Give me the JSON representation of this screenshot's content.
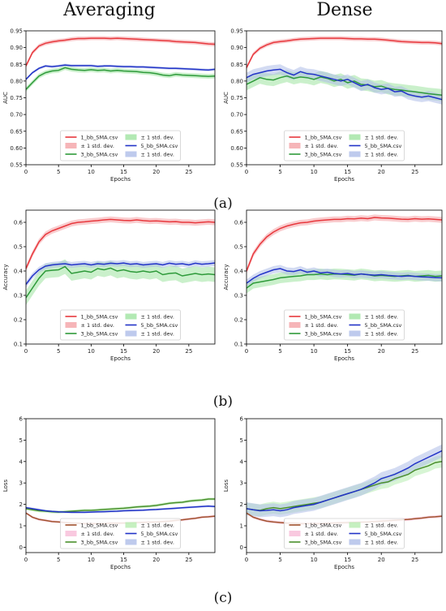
{
  "column_titles": [
    "Averaging",
    "Dense"
  ],
  "panel_labels": [
    "(a)",
    "(b)",
    "(c)"
  ],
  "chart_data": [
    {
      "type": "line",
      "panel": "a",
      "column": "Averaging",
      "xlabel": "Epochs",
      "ylabel": "AUC",
      "xlim": [
        0,
        29
      ],
      "ylim": [
        0.55,
        0.95
      ],
      "xticks": [
        0,
        5,
        10,
        15,
        20,
        25
      ],
      "yticks": [
        0.55,
        0.6,
        0.65,
        0.7,
        0.75,
        0.8,
        0.85,
        0.9,
        0.95
      ],
      "legend_position": "bottom-center",
      "legend": [
        "1_bb_SMA.csv",
        "± 1 std. dev.",
        "3_bb_SMA.csv",
        "± 1 std. dev.",
        "5_bb_SMA.csv",
        "± 1 std. dev."
      ],
      "x": [
        0,
        1,
        2,
        3,
        4,
        5,
        6,
        7,
        8,
        9,
        10,
        11,
        12,
        13,
        14,
        15,
        16,
        17,
        18,
        19,
        20,
        21,
        22,
        23,
        24,
        25,
        26,
        27,
        28,
        29
      ],
      "series": [
        {
          "name": "1_bb_SMA.csv",
          "color": "#e8383d",
          "band_color": "#f4a3a6",
          "std": 0.006,
          "values": [
            0.845,
            0.885,
            0.905,
            0.913,
            0.917,
            0.92,
            0.922,
            0.925,
            0.927,
            0.927,
            0.928,
            0.928,
            0.928,
            0.927,
            0.928,
            0.927,
            0.926,
            0.925,
            0.924,
            0.923,
            0.922,
            0.921,
            0.92,
            0.918,
            0.917,
            0.916,
            0.915,
            0.913,
            0.911,
            0.91
          ]
        },
        {
          "name": "3_bb_SMA.csv",
          "color": "#2e9a3a",
          "band_color": "#9fe3a0",
          "std": 0.007,
          "values": [
            0.775,
            0.795,
            0.815,
            0.825,
            0.83,
            0.832,
            0.84,
            0.835,
            0.833,
            0.832,
            0.834,
            0.832,
            0.833,
            0.83,
            0.832,
            0.83,
            0.829,
            0.828,
            0.826,
            0.825,
            0.822,
            0.818,
            0.816,
            0.82,
            0.818,
            0.817,
            0.816,
            0.815,
            0.814,
            0.815
          ]
        },
        {
          "name": "5_bb_SMA.csv",
          "color": "#2233c8",
          "band_color": "#aebde8",
          "std": 0.004,
          "values": [
            0.805,
            0.825,
            0.838,
            0.845,
            0.843,
            0.845,
            0.848,
            0.846,
            0.846,
            0.846,
            0.846,
            0.844,
            0.845,
            0.845,
            0.844,
            0.843,
            0.843,
            0.842,
            0.842,
            0.841,
            0.84,
            0.839,
            0.838,
            0.838,
            0.837,
            0.836,
            0.835,
            0.834,
            0.833,
            0.835
          ]
        }
      ]
    },
    {
      "type": "line",
      "panel": "a",
      "column": "Dense",
      "xlabel": "Epochs",
      "ylabel": "AUC",
      "xlim": [
        0,
        29
      ],
      "ylim": [
        0.55,
        0.95
      ],
      "xticks": [
        0,
        5,
        10,
        15,
        20,
        25
      ],
      "yticks": [
        0.55,
        0.6,
        0.65,
        0.7,
        0.75,
        0.8,
        0.85,
        0.9,
        0.95
      ],
      "legend_position": "bottom-center",
      "legend": [
        "1_bb_SMA.csv",
        "± 1 std. dev.",
        "3_bb_SMA.csv",
        "± 1 std. dev.",
        "5_bb_SMA.csv",
        "± 1 std. dev."
      ],
      "x": [
        0,
        1,
        2,
        3,
        4,
        5,
        6,
        7,
        8,
        9,
        10,
        11,
        12,
        13,
        14,
        15,
        16,
        17,
        18,
        19,
        20,
        21,
        22,
        23,
        24,
        25,
        26,
        27,
        28,
        29
      ],
      "series": [
        {
          "name": "1_bb_SMA.csv",
          "color": "#e8383d",
          "band_color": "#f4a3a6",
          "std": 0.006,
          "values": [
            0.84,
            0.88,
            0.898,
            0.908,
            0.915,
            0.918,
            0.92,
            0.923,
            0.925,
            0.926,
            0.927,
            0.928,
            0.928,
            0.928,
            0.928,
            0.927,
            0.926,
            0.926,
            0.925,
            0.925,
            0.924,
            0.922,
            0.92,
            0.918,
            0.917,
            0.916,
            0.915,
            0.915,
            0.914,
            0.912
          ]
        },
        {
          "name": "3_bb_SMA.csv",
          "color": "#2e9a3a",
          "band_color": "#9fe3a0",
          "std": 0.018,
          "values": [
            0.79,
            0.8,
            0.81,
            0.805,
            0.803,
            0.81,
            0.815,
            0.808,
            0.812,
            0.81,
            0.805,
            0.812,
            0.808,
            0.8,
            0.805,
            0.795,
            0.8,
            0.79,
            0.788,
            0.783,
            0.785,
            0.778,
            0.775,
            0.773,
            0.77,
            0.768,
            0.765,
            0.762,
            0.76,
            0.758
          ]
        },
        {
          "name": "5_bb_SMA.csv",
          "color": "#2233c8",
          "band_color": "#aebde8",
          "std": 0.015,
          "values": [
            0.81,
            0.82,
            0.825,
            0.83,
            0.833,
            0.835,
            0.825,
            0.818,
            0.828,
            0.822,
            0.82,
            0.815,
            0.81,
            0.805,
            0.8,
            0.805,
            0.795,
            0.785,
            0.79,
            0.78,
            0.775,
            0.778,
            0.768,
            0.77,
            0.76,
            0.755,
            0.752,
            0.755,
            0.75,
            0.745
          ]
        }
      ]
    },
    {
      "type": "line",
      "panel": "b",
      "column": "Averaging",
      "xlabel": "Epochs",
      "ylabel": "Accuracy",
      "xlim": [
        0,
        29
      ],
      "ylim": [
        0.1,
        0.65
      ],
      "xticks": [
        0,
        5,
        10,
        15,
        20,
        25
      ],
      "yticks": [
        0.1,
        0.2,
        0.3,
        0.4,
        0.5,
        0.6
      ],
      "legend_position": "bottom-center",
      "legend": [
        "1_bb_SMA.csv",
        "± 1 std. dev.",
        "3_bb_SMA.csv",
        "± 1 std. dev.",
        "5_bb_SMA.csv",
        "± 1 std. dev."
      ],
      "x": [
        0,
        1,
        2,
        3,
        4,
        5,
        6,
        7,
        8,
        9,
        10,
        11,
        12,
        13,
        14,
        15,
        16,
        17,
        18,
        19,
        20,
        21,
        22,
        23,
        24,
        25,
        26,
        27,
        28,
        29
      ],
      "series": [
        {
          "name": "1_bb_SMA.csv",
          "color": "#e8383d",
          "band_color": "#f4a3a6",
          "std": 0.012,
          "values": [
            0.41,
            0.47,
            0.52,
            0.55,
            0.565,
            0.575,
            0.585,
            0.595,
            0.6,
            0.602,
            0.605,
            0.607,
            0.61,
            0.612,
            0.61,
            0.608,
            0.607,
            0.61,
            0.607,
            0.605,
            0.606,
            0.604,
            0.602,
            0.603,
            0.6,
            0.6,
            0.598,
            0.6,
            0.602,
            0.6
          ]
        },
        {
          "name": "3_bb_SMA.csv",
          "color": "#2e9a3a",
          "band_color": "#9fe3a0",
          "std": 0.03,
          "values": [
            0.29,
            0.33,
            0.37,
            0.4,
            0.403,
            0.405,
            0.418,
            0.39,
            0.395,
            0.4,
            0.395,
            0.41,
            0.405,
            0.412,
            0.4,
            0.405,
            0.398,
            0.395,
            0.4,
            0.395,
            0.4,
            0.385,
            0.39,
            0.392,
            0.38,
            0.385,
            0.39,
            0.385,
            0.388,
            0.385
          ]
        },
        {
          "name": "5_bb_SMA.csv",
          "color": "#2233c8",
          "band_color": "#aebde8",
          "std": 0.012,
          "values": [
            0.345,
            0.38,
            0.405,
            0.42,
            0.425,
            0.428,
            0.43,
            0.425,
            0.428,
            0.43,
            0.425,
            0.43,
            0.428,
            0.432,
            0.43,
            0.433,
            0.428,
            0.43,
            0.425,
            0.428,
            0.43,
            0.425,
            0.432,
            0.428,
            0.43,
            0.425,
            0.432,
            0.428,
            0.43,
            0.433
          ]
        }
      ]
    },
    {
      "type": "line",
      "panel": "b",
      "column": "Dense",
      "xlabel": "Epochs",
      "ylabel": "Accuracy",
      "xlim": [
        0,
        29
      ],
      "ylim": [
        0.1,
        0.65
      ],
      "xticks": [
        0,
        5,
        10,
        15,
        20,
        25
      ],
      "yticks": [
        0.1,
        0.2,
        0.3,
        0.4,
        0.5,
        0.6
      ],
      "legend_position": "bottom-center",
      "legend": [
        "1_bb_SMA.csv",
        "± 1 std. dev.",
        "3_bb_SMA.csv",
        "± 1 std. dev.",
        "5_bb_SMA.csv",
        "± 1 std. dev."
      ],
      "x": [
        0,
        1,
        2,
        3,
        4,
        5,
        6,
        7,
        8,
        9,
        10,
        11,
        12,
        13,
        14,
        15,
        16,
        17,
        18,
        19,
        20,
        21,
        22,
        23,
        24,
        25,
        26,
        27,
        28,
        29
      ],
      "series": [
        {
          "name": "1_bb_SMA.csv",
          "color": "#e8383d",
          "band_color": "#f4a3a6",
          "std": 0.012,
          "values": [
            0.4,
            0.47,
            0.51,
            0.54,
            0.56,
            0.575,
            0.585,
            0.592,
            0.598,
            0.6,
            0.605,
            0.608,
            0.61,
            0.612,
            0.612,
            0.615,
            0.614,
            0.617,
            0.615,
            0.62,
            0.618,
            0.617,
            0.615,
            0.613,
            0.612,
            0.615,
            0.613,
            0.614,
            0.612,
            0.61
          ]
        },
        {
          "name": "3_bb_SMA.csv",
          "color": "#2e9a3a",
          "band_color": "#9fe3a0",
          "std": 0.022,
          "values": [
            0.33,
            0.35,
            0.355,
            0.36,
            0.365,
            0.372,
            0.375,
            0.378,
            0.38,
            0.385,
            0.385,
            0.388,
            0.385,
            0.388,
            0.387,
            0.385,
            0.383,
            0.388,
            0.385,
            0.38,
            0.382,
            0.38,
            0.378,
            0.38,
            0.382,
            0.378,
            0.38,
            0.382,
            0.378,
            0.38
          ]
        },
        {
          "name": "5_bb_SMA.csv",
          "color": "#2233c8",
          "band_color": "#aebde8",
          "std": 0.015,
          "values": [
            0.35,
            0.37,
            0.385,
            0.395,
            0.405,
            0.41,
            0.4,
            0.398,
            0.405,
            0.395,
            0.4,
            0.392,
            0.395,
            0.39,
            0.388,
            0.39,
            0.385,
            0.388,
            0.385,
            0.383,
            0.385,
            0.382,
            0.38,
            0.378,
            0.38,
            0.378,
            0.376,
            0.375,
            0.373,
            0.372
          ]
        }
      ]
    },
    {
      "type": "line",
      "panel": "c",
      "column": "Averaging",
      "xlabel": "Epochs",
      "ylabel": "Loss",
      "xlim": [
        0,
        29
      ],
      "ylim": [
        -0.25,
        6
      ],
      "xticks": [
        0,
        5,
        10,
        15,
        20,
        25
      ],
      "yticks": [
        0,
        1,
        2,
        3,
        4,
        5,
        6
      ],
      "legend_position": "bottom-center",
      "legend": [
        "1_bb_SMA.csv",
        "± 1 std. dev.",
        "3_bb_SMA.csv",
        "± 1 std. dev.",
        "5_bb_SMA.csv",
        "± 1 std. dev."
      ],
      "x": [
        0,
        1,
        2,
        3,
        4,
        5,
        6,
        7,
        8,
        9,
        10,
        11,
        12,
        13,
        14,
        15,
        16,
        17,
        18,
        19,
        20,
        21,
        22,
        23,
        24,
        25,
        26,
        27,
        28,
        29
      ],
      "series": [
        {
          "name": "1_bb_SMA.csv",
          "color": "#a0522d",
          "band_color": "#f7bcd7",
          "std": 0.06,
          "values": [
            1.6,
            1.4,
            1.3,
            1.25,
            1.2,
            1.18,
            1.15,
            1.13,
            1.12,
            1.1,
            1.1,
            1.1,
            1.1,
            1.12,
            1.12,
            1.13,
            1.14,
            1.15,
            1.16,
            1.17,
            1.18,
            1.2,
            1.22,
            1.25,
            1.28,
            1.32,
            1.35,
            1.4,
            1.42,
            1.45
          ]
        },
        {
          "name": "3_bb_SMA.csv",
          "color": "#4a8f2c",
          "band_color": "#b7ecb0",
          "std": 0.07,
          "values": [
            1.8,
            1.75,
            1.7,
            1.68,
            1.65,
            1.64,
            1.66,
            1.68,
            1.7,
            1.72,
            1.72,
            1.74,
            1.76,
            1.78,
            1.8,
            1.82,
            1.85,
            1.88,
            1.9,
            1.92,
            1.95,
            2.0,
            2.05,
            2.08,
            2.1,
            2.15,
            2.18,
            2.2,
            2.25,
            2.25
          ]
        },
        {
          "name": "5_bb_SMA.csv",
          "color": "#2233c8",
          "band_color": "#aebde8",
          "std": 0.05,
          "values": [
            1.85,
            1.8,
            1.75,
            1.7,
            1.67,
            1.65,
            1.64,
            1.63,
            1.63,
            1.63,
            1.64,
            1.65,
            1.66,
            1.67,
            1.68,
            1.7,
            1.71,
            1.72,
            1.73,
            1.75,
            1.76,
            1.78,
            1.8,
            1.82,
            1.84,
            1.86,
            1.88,
            1.9,
            1.92,
            1.9
          ]
        }
      ]
    },
    {
      "type": "line",
      "panel": "c",
      "column": "Dense",
      "xlabel": "Epochs",
      "ylabel": "Loss",
      "xlim": [
        0,
        29
      ],
      "ylim": [
        -0.25,
        6
      ],
      "xticks": [
        0,
        5,
        10,
        15,
        20,
        25
      ],
      "yticks": [
        0,
        1,
        2,
        3,
        4,
        5,
        6
      ],
      "legend_position": "bottom-center",
      "legend": [
        "1_bb_SMA.csv",
        "± 1 std. dev.",
        "3_bb_SMA.csv",
        "± 1 std. dev.",
        "5_bb_SMA.csv",
        "± 1 std. dev."
      ],
      "x": [
        0,
        1,
        2,
        3,
        4,
        5,
        6,
        7,
        8,
        9,
        10,
        11,
        12,
        13,
        14,
        15,
        16,
        17,
        18,
        19,
        20,
        21,
        22,
        23,
        24,
        25,
        26,
        27,
        28,
        29
      ],
      "series": [
        {
          "name": "1_bb_SMA.csv",
          "color": "#a0522d",
          "band_color": "#f7bcd7",
          "std": 0.07,
          "values": [
            1.6,
            1.4,
            1.3,
            1.22,
            1.18,
            1.15,
            1.13,
            1.12,
            1.1,
            1.1,
            1.1,
            1.1,
            1.12,
            1.13,
            1.14,
            1.15,
            1.16,
            1.17,
            1.18,
            1.2,
            1.22,
            1.24,
            1.26,
            1.28,
            1.3,
            1.33,
            1.36,
            1.4,
            1.42,
            1.45
          ]
        },
        {
          "name": "3_bb_SMA.csv",
          "color": "#4a8f2c",
          "band_color": "#b7ecb0",
          "std": 0.28,
          "values": [
            1.8,
            1.75,
            1.72,
            1.8,
            1.85,
            1.8,
            1.85,
            1.9,
            1.95,
            2.0,
            2.05,
            2.1,
            2.2,
            2.3,
            2.4,
            2.5,
            2.6,
            2.7,
            2.8,
            2.9,
            3.0,
            3.05,
            3.2,
            3.3,
            3.4,
            3.6,
            3.7,
            3.8,
            3.95,
            4.0
          ]
        },
        {
          "name": "5_bb_SMA.csv",
          "color": "#2233c8",
          "band_color": "#aebde8",
          "std": 0.3,
          "values": [
            1.8,
            1.75,
            1.7,
            1.72,
            1.75,
            1.7,
            1.75,
            1.85,
            1.9,
            1.95,
            2.0,
            2.1,
            2.2,
            2.3,
            2.4,
            2.5,
            2.6,
            2.7,
            2.85,
            3.0,
            3.2,
            3.3,
            3.4,
            3.55,
            3.7,
            3.9,
            4.05,
            4.2,
            4.35,
            4.5
          ]
        }
      ]
    }
  ]
}
